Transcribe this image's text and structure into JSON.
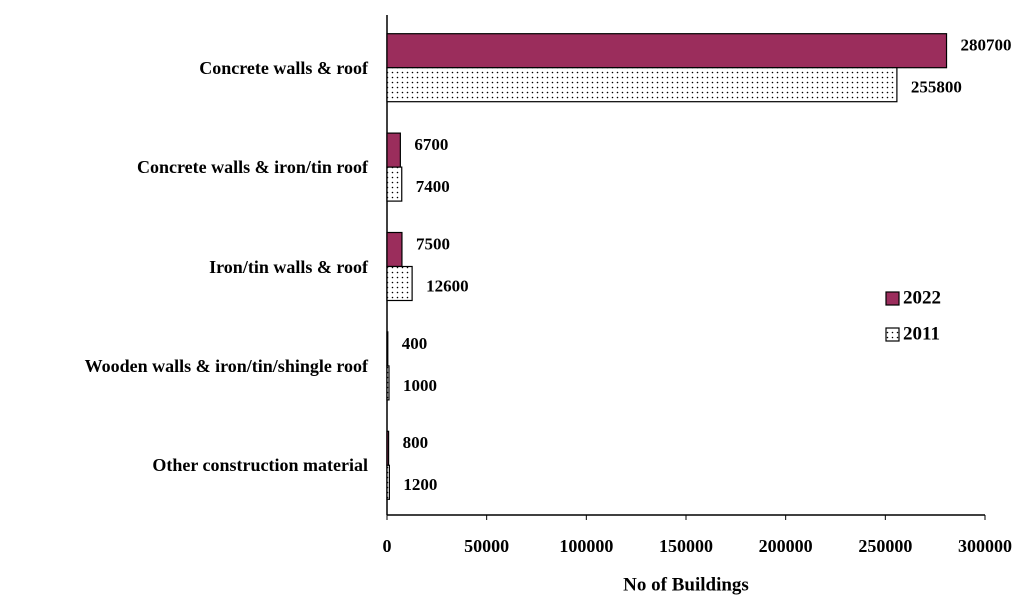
{
  "chart_data": {
    "type": "hbar",
    "categories": [
      "Concrete walls & roof",
      "Concrete walls & iron/tin roof",
      "Iron/tin walls & roof",
      "Wooden walls & iron/tin/shingle roof",
      "Other construction material"
    ],
    "series": [
      {
        "name": "2022",
        "color": "#9b2d5c",
        "values": [
          280700,
          6700,
          7500,
          400,
          800
        ]
      },
      {
        "name": "2011",
        "color": "#ffffff",
        "pattern": "dots",
        "values": [
          255800,
          7400,
          12600,
          1000,
          1200
        ]
      }
    ],
    "xlabel": "No of Buildings",
    "xlim": [
      0,
      300000
    ],
    "xticks": [
      0,
      50000,
      100000,
      150000,
      200000,
      250000,
      300000
    ],
    "grid": false,
    "legend": "right"
  }
}
